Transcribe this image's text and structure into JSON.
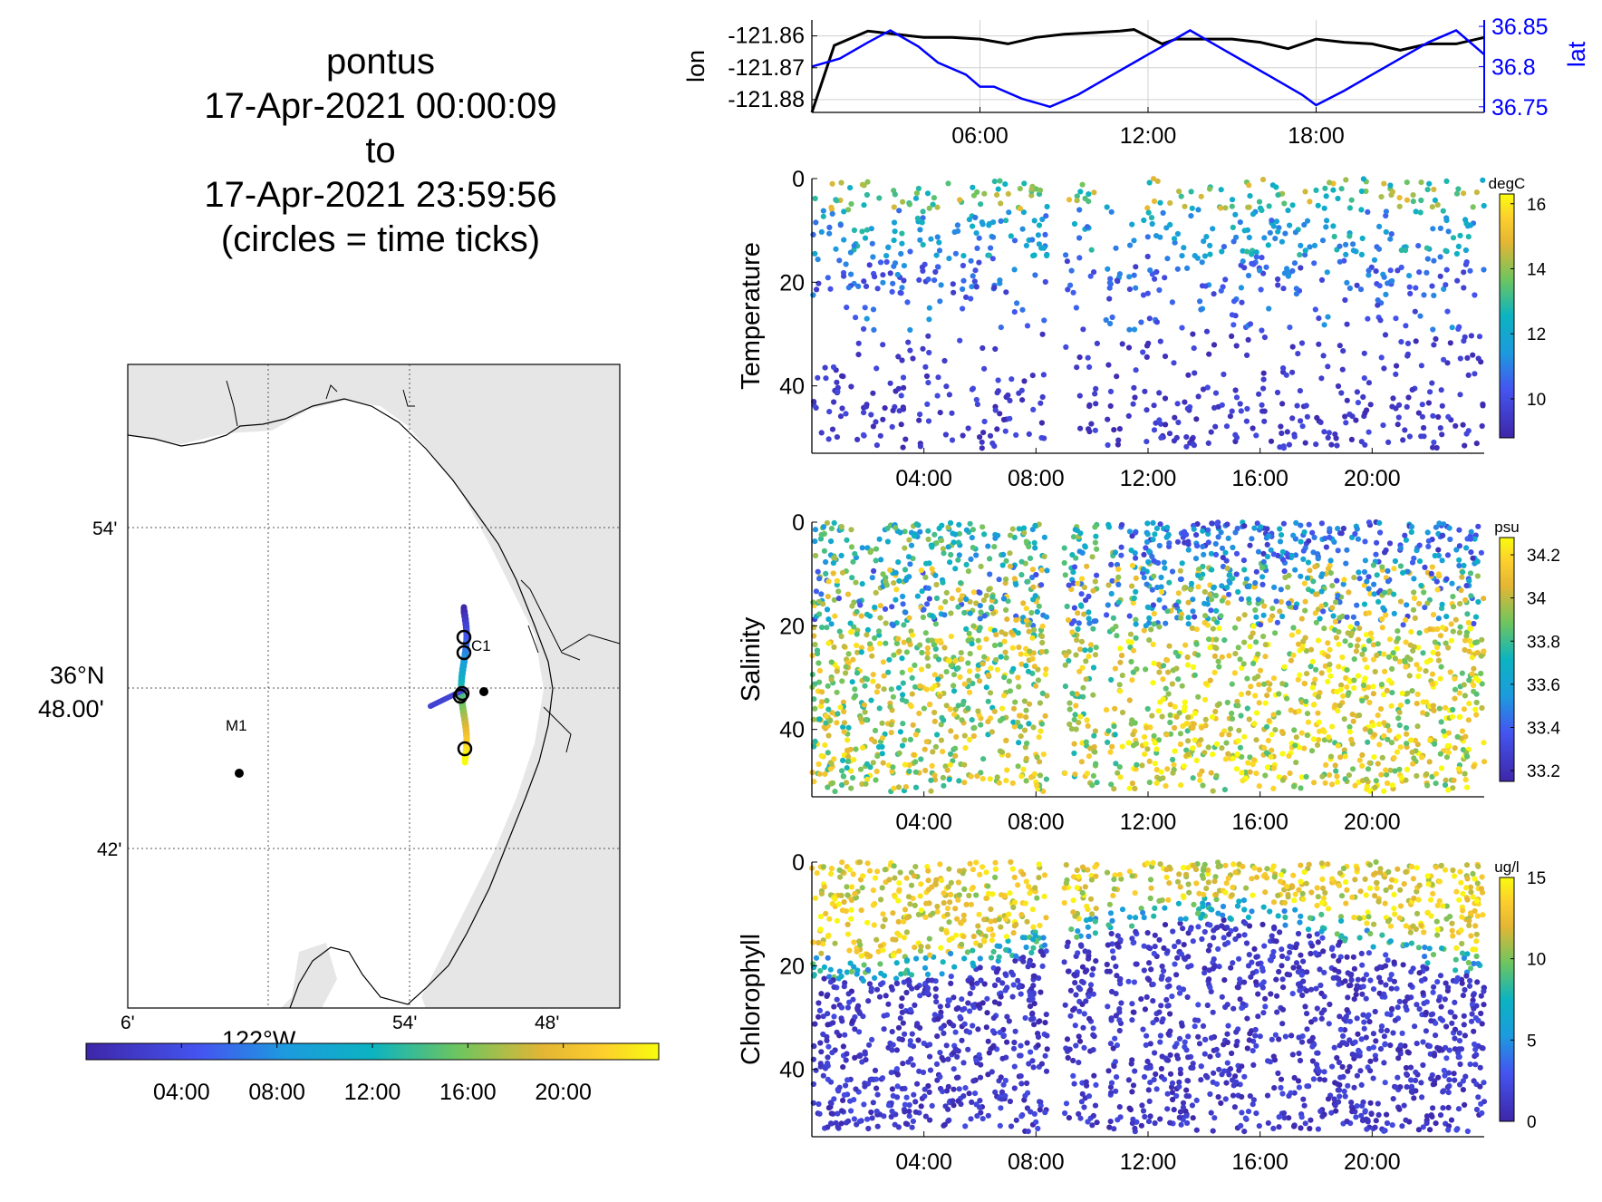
{
  "title_lines": [
    "pontus",
    "17-Apr-2021 00:00:09",
    "to",
    "17-Apr-2021 23:59:56",
    "(circles = time ticks)"
  ],
  "chart_data": [
    {
      "type": "line",
      "title": "",
      "xlabel": "",
      "ylabel": "lon",
      "ylabel_right": "lat",
      "x_ticks": [
        "06:00",
        "12:00",
        "18:00"
      ],
      "y_ticks_left": [
        "-121.86",
        "-121.87",
        "-121.88"
      ],
      "y_ticks_right": [
        "36.85",
        "36.8",
        "36.75"
      ],
      "xlim_hours": [
        0,
        24
      ],
      "ylim_left": [
        -121.884,
        -121.855
      ],
      "ylim_right": [
        36.743,
        36.858
      ],
      "grid": true,
      "series": [
        {
          "name": "lon",
          "axis": "left",
          "color": "#000000",
          "x": [
            0,
            0.8,
            2,
            3,
            4,
            5,
            6,
            7,
            8,
            9,
            10,
            11,
            11.5,
            12.5,
            13,
            14,
            15,
            16,
            17,
            18,
            19,
            20,
            21,
            22,
            23,
            24
          ],
          "y": [
            -121.884,
            -121.863,
            -121.8585,
            -121.8595,
            -121.8605,
            -121.8605,
            -121.861,
            -121.8625,
            -121.8605,
            -121.8595,
            -121.859,
            -121.8585,
            -121.858,
            -121.8625,
            -121.861,
            -121.861,
            -121.861,
            -121.862,
            -121.864,
            -121.861,
            -121.862,
            -121.8625,
            -121.8645,
            -121.8625,
            -121.8625,
            -121.8605
          ]
        },
        {
          "name": "lat",
          "axis": "right",
          "color": "#0000ff",
          "x": [
            0,
            1,
            2,
            2.8,
            3.8,
            4.5,
            5.5,
            6,
            6.5,
            7.5,
            8.5,
            9.5,
            10.5,
            11.5,
            12.5,
            13.5,
            14.5,
            15.5,
            16.5,
            17.5,
            18,
            19,
            20,
            21,
            22,
            23,
            24
          ],
          "y": [
            36.8,
            36.81,
            36.83,
            36.845,
            36.825,
            36.805,
            36.79,
            36.775,
            36.775,
            36.76,
            36.75,
            36.765,
            36.785,
            36.805,
            36.825,
            36.845,
            36.825,
            36.805,
            36.785,
            36.765,
            36.752,
            36.77,
            36.79,
            36.81,
            36.83,
            36.845,
            36.815
          ]
        }
      ]
    },
    {
      "type": "scatter",
      "title": "",
      "xlabel": "",
      "ylabel": "Temperature",
      "x_ticks": [
        "04:00",
        "08:00",
        "12:00",
        "16:00",
        "20:00"
      ],
      "y_ticks": [
        "0",
        "20",
        "40"
      ],
      "ylim": [
        0,
        53
      ],
      "xlim_hours": [
        0,
        24
      ],
      "colorbar": {
        "label": "degC",
        "ticks": [
          "16",
          "14",
          "12",
          "10"
        ],
        "tick_values": [
          16,
          14,
          12,
          10
        ],
        "range": [
          8.8,
          16.3
        ]
      }
    },
    {
      "type": "scatter",
      "title": "",
      "xlabel": "",
      "ylabel": "Salinity",
      "x_ticks": [
        "04:00",
        "08:00",
        "12:00",
        "16:00",
        "20:00"
      ],
      "y_ticks": [
        "0",
        "20",
        "40"
      ],
      "ylim": [
        0,
        53
      ],
      "xlim_hours": [
        0,
        24
      ],
      "colorbar": {
        "label": "psu",
        "ticks": [
          "34.2",
          "34",
          "33.8",
          "33.6",
          "33.4",
          "33.2"
        ],
        "tick_values": [
          34.2,
          34,
          33.8,
          33.6,
          33.4,
          33.2
        ],
        "range": [
          33.15,
          34.28
        ]
      }
    },
    {
      "type": "scatter",
      "title": "",
      "xlabel": "",
      "ylabel": "Chlorophyll",
      "x_ticks": [
        "04:00",
        "08:00",
        "12:00",
        "16:00",
        "20:00"
      ],
      "y_ticks": [
        "0",
        "20",
        "40"
      ],
      "ylim": [
        0,
        53
      ],
      "xlim_hours": [
        0,
        24
      ],
      "colorbar": {
        "label": "ug/l",
        "ticks": [
          "15",
          "10",
          "5",
          "0"
        ],
        "tick_values": [
          15,
          10,
          5,
          0
        ],
        "range": [
          0,
          15
        ]
      }
    },
    {
      "type": "map",
      "title": "",
      "xlabel": "",
      "ylabel": "",
      "lon_ticks": [
        "6'",
        "122°W",
        "54'",
        "48'"
      ],
      "lat_ticks": [
        "54'",
        "36°N",
        "48.00'",
        "42'"
      ],
      "stations": [
        "M1",
        "C1"
      ],
      "time_colorbar_ticks": [
        "04:00",
        "08:00",
        "12:00",
        "16:00",
        "20:00"
      ]
    }
  ],
  "colors": {
    "land": "#e6e6e6",
    "lon_line": "#000000",
    "lat_line": "#0000ff",
    "grid": "#d0d0d0"
  }
}
